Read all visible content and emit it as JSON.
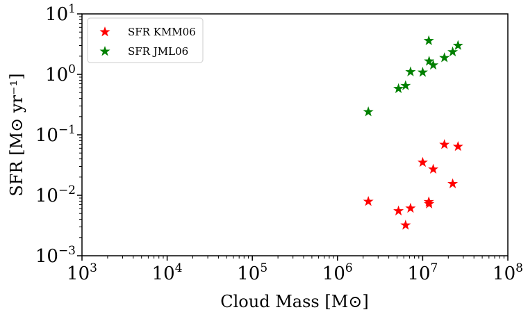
{
  "chart_data": {
    "type": "scatter",
    "xscale": "log",
    "yscale": "log",
    "xlim": [
      1000,
      100000000
    ],
    "ylim": [
      0.001,
      10
    ],
    "xlabel": "Cloud Mass [M⊙]",
    "ylabel": "SFR [M⊙ yr⁻¹]",
    "x_tick_labels": [
      {
        "base": "10",
        "exp": "3",
        "value": 1000
      },
      {
        "base": "10",
        "exp": "4",
        "value": 10000
      },
      {
        "base": "10",
        "exp": "5",
        "value": 100000
      },
      {
        "base": "10",
        "exp": "6",
        "value": 1000000
      },
      {
        "base": "10",
        "exp": "7",
        "value": 10000000
      },
      {
        "base": "10",
        "exp": "8",
        "value": 100000000
      }
    ],
    "y_tick_labels": [
      {
        "base": "10",
        "exp": "−3",
        "value": 0.001
      },
      {
        "base": "10",
        "exp": "−2",
        "value": 0.01
      },
      {
        "base": "10",
        "exp": "−1",
        "value": 0.1
      },
      {
        "base": "10",
        "exp": "0",
        "value": 1
      },
      {
        "base": "10",
        "exp": "1",
        "value": 10
      }
    ],
    "legend": {
      "position": "upper-left"
    },
    "series": [
      {
        "name": "SFR KMM06",
        "color": "#ff0000",
        "marker": "star",
        "points": [
          {
            "x": 2300000,
            "y": 0.0079
          },
          {
            "x": 5200000,
            "y": 0.0055
          },
          {
            "x": 6300000,
            "y": 0.0032
          },
          {
            "x": 7200000,
            "y": 0.0061
          },
          {
            "x": 10000000,
            "y": 0.035
          },
          {
            "x": 11800000,
            "y": 0.0078
          },
          {
            "x": 11900000,
            "y": 0.0072
          },
          {
            "x": 13300000,
            "y": 0.027
          },
          {
            "x": 18000000,
            "y": 0.069
          },
          {
            "x": 22500000,
            "y": 0.0155
          },
          {
            "x": 26000000,
            "y": 0.064
          }
        ]
      },
      {
        "name": "SFR JML06",
        "color": "#008000",
        "marker": "star",
        "points": [
          {
            "x": 2300000,
            "y": 0.24
          },
          {
            "x": 5200000,
            "y": 0.58
          },
          {
            "x": 6300000,
            "y": 0.65
          },
          {
            "x": 7200000,
            "y": 1.1
          },
          {
            "x": 10000000,
            "y": 1.08
          },
          {
            "x": 11800000,
            "y": 3.6
          },
          {
            "x": 11900000,
            "y": 1.65
          },
          {
            "x": 13300000,
            "y": 1.42
          },
          {
            "x": 18000000,
            "y": 1.88
          },
          {
            "x": 22500000,
            "y": 2.35
          },
          {
            "x": 26000000,
            "y": 3.0
          }
        ]
      }
    ]
  }
}
